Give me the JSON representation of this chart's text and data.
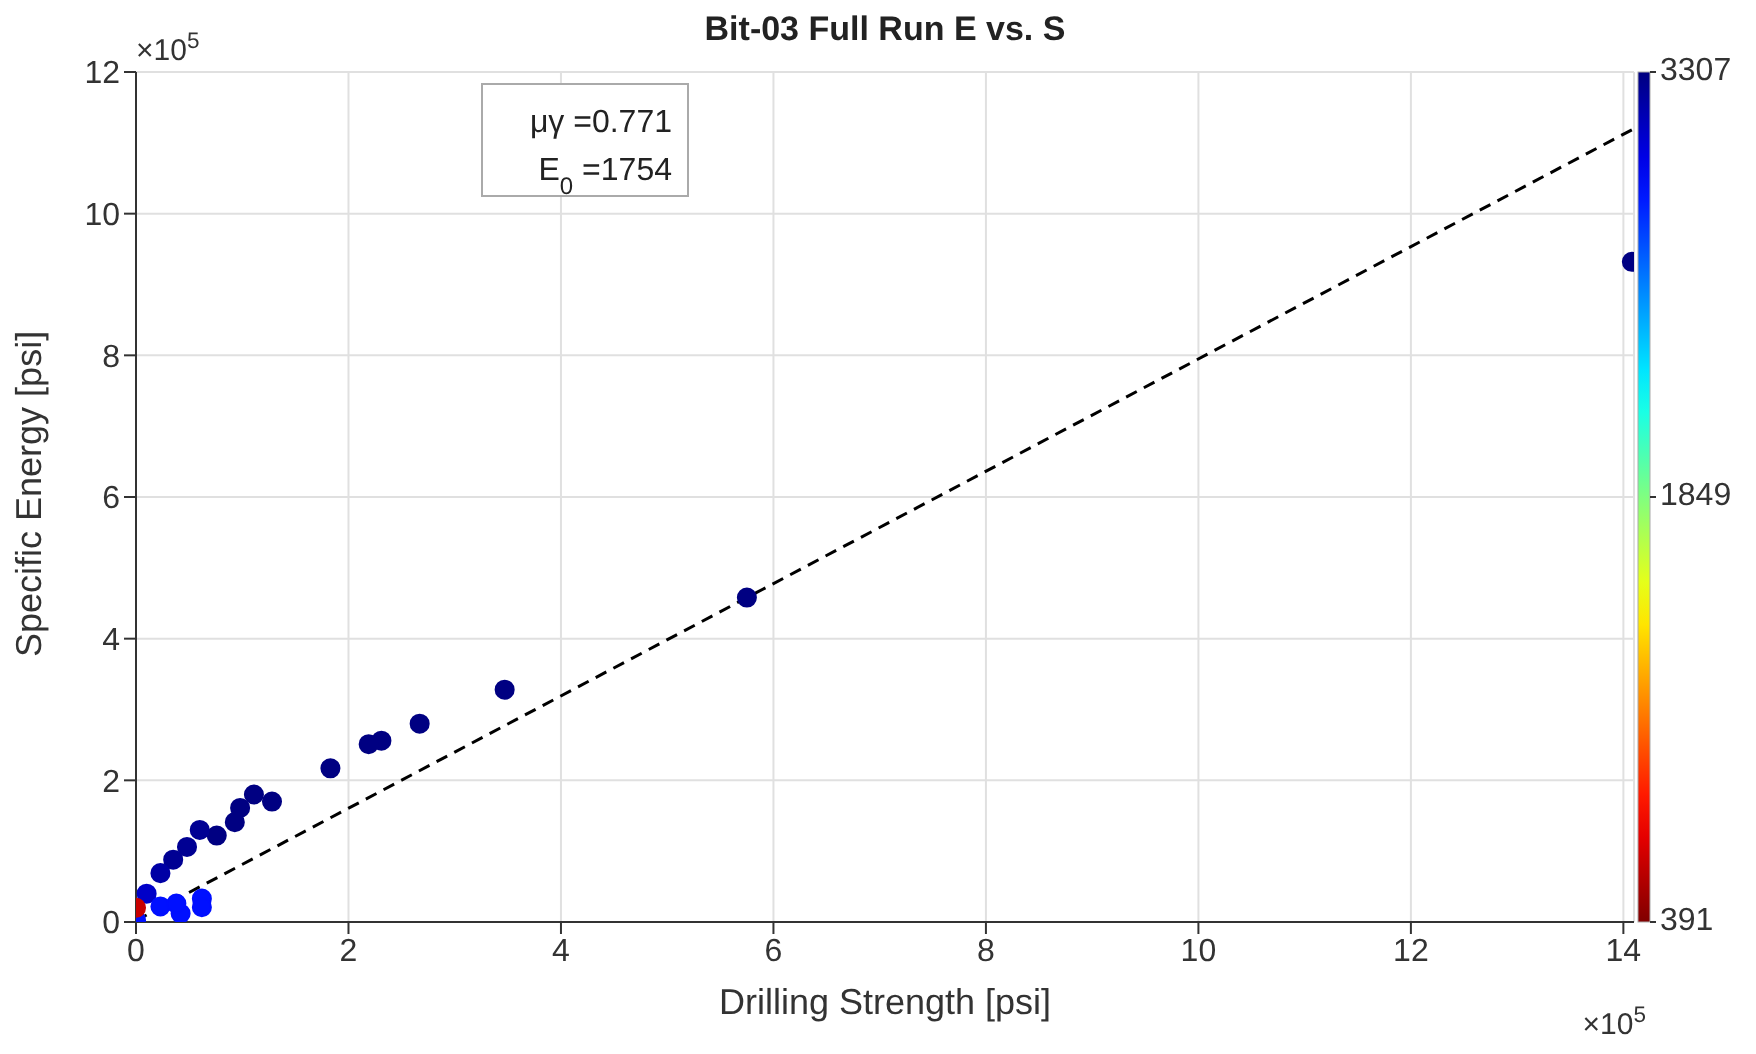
{
  "chart_data": {
    "type": "scatter",
    "title": "Bit-03 Full Run E vs. S",
    "xlabel": "Drilling Strength [psi]",
    "ylabel": "Specific Energy [psi]",
    "annotations": [
      "μγ =0.771",
      "E$_{0}$ =1754",
      "×10$^{5}$",
      "×10$^{5}$"
    ],
    "xlim": [
      0,
      14.1
    ],
    "xticks": [
      0,
      2,
      4,
      6,
      8,
      10,
      12,
      14
    ],
    "ylim": [
      0,
      12
    ],
    "yticks": [
      0,
      2,
      4,
      6,
      8,
      10,
      12
    ],
    "grid": true,
    "legend": false,
    "marker": "circle",
    "clabel": null,
    "clim": [
      391,
      3307
    ],
    "cticks": [
      391,
      1849,
      3307
    ],
    "series": [
      {
        "colors": [
          "#000082",
          "#000082",
          "#000082",
          "#000082",
          "#000082",
          "#000082",
          "#000082",
          "#000082",
          "#000082",
          "#000082",
          "#000082",
          "#000082",
          "#000093",
          "#000093",
          "#000093",
          "#0000a5",
          "#0000c8",
          "#0010ff",
          "#0010ff",
          "#0010ff",
          "#0010ff",
          "#0010ff",
          "#0010ff",
          "#c80000"
        ],
        "x": [
          14.08,
          5.75,
          3.47,
          2.67,
          2.31,
          2.19,
          1.83,
          1.28,
          1.11,
          0.98,
          0.93,
          0.76,
          0.6,
          0.48,
          0.35,
          0.23,
          0.1,
          0,
          0.23,
          0.42,
          0.62,
          0.62,
          0.38,
          0
        ],
        "values": [
          9.32,
          4.58,
          3.28,
          2.8,
          2.56,
          2.51,
          2.17,
          1.7,
          1.8,
          1.61,
          1.41,
          1.22,
          1.3,
          1.06,
          0.88,
          0.69,
          0.4,
          0.03,
          0.22,
          0.12,
          0.33,
          0.21,
          0.26,
          0.2
        ],
        "cvalues": [
          3300,
          3300,
          3300,
          3300,
          3300,
          3300,
          3300,
          3300,
          3300,
          3300,
          3300,
          3300,
          3250,
          3250,
          3250,
          3200,
          3100,
          2900,
          2900,
          2900,
          2900,
          2900,
          2900,
          600
        ]
      },
      {
        "type": "line",
        "color": "#000000",
        "line_style": "dashed",
        "marker": "none",
        "x": [
          0,
          14.1
        ],
        "values": [
          0.02,
          11.2
        ]
      }
    ]
  }
}
